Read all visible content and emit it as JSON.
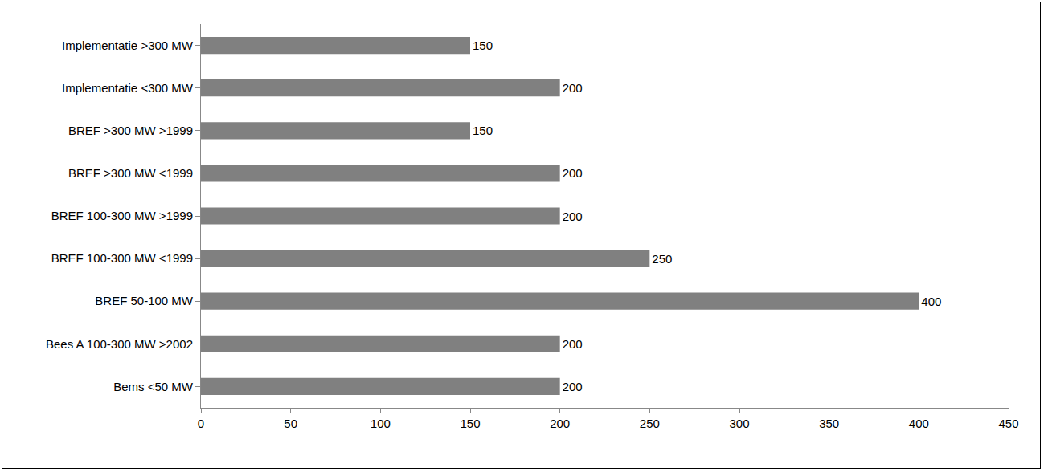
{
  "chart_data": {
    "type": "bar",
    "orientation": "horizontal",
    "categories": [
      "Implementatie >300 MW",
      "Implementatie <300 MW",
      "BREF >300 MW >1999",
      "BREF >300 MW <1999",
      "BREF 100-300 MW >1999",
      "BREF 100-300 MW <1999",
      "BREF 50-100 MW",
      "Bees A 100-300 MW >2002",
      "Bems <50 MW"
    ],
    "values": [
      150,
      200,
      150,
      200,
      200,
      250,
      400,
      200,
      200
    ],
    "color": "#808080",
    "xlim": [
      0,
      450
    ],
    "xticks": [
      0,
      50,
      100,
      150,
      200,
      250,
      300,
      350,
      400,
      450
    ],
    "grid": false,
    "data_labels": true
  }
}
